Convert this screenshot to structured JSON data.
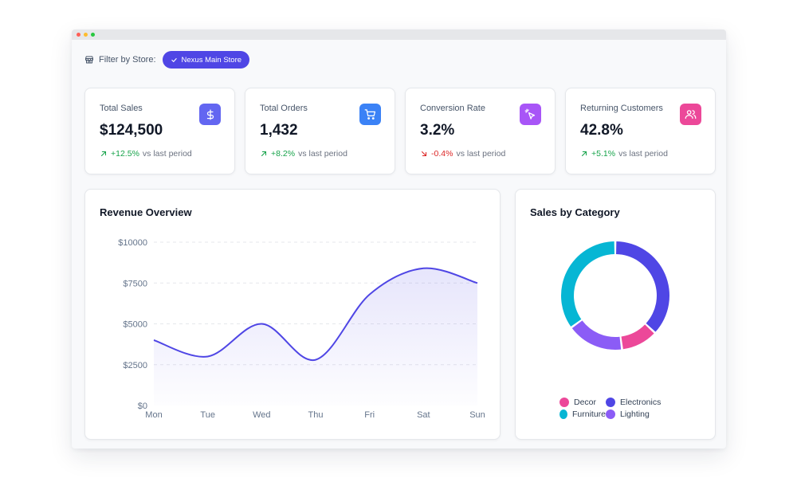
{
  "window": {
    "dots": [
      "#ff5f57",
      "#febc2e",
      "#28c840"
    ]
  },
  "filter": {
    "label": "Filter by Store:",
    "store": "Nexus Main Store"
  },
  "stats": [
    {
      "title": "Total Sales",
      "value": "$124,500",
      "trend": "+12.5%",
      "trend_sub": "vs last period",
      "direction": "up",
      "icon": "dollar-icon",
      "color": "#6366f1"
    },
    {
      "title": "Total Orders",
      "value": "1,432",
      "trend": "+8.2%",
      "trend_sub": "vs last period",
      "direction": "up",
      "icon": "shopping-cart-icon",
      "color": "#3b82f6"
    },
    {
      "title": "Conversion Rate",
      "value": "3.2%",
      "trend": "-0.4%",
      "trend_sub": "vs last period",
      "direction": "down",
      "icon": "pointer-click-icon",
      "color": "#a855f7"
    },
    {
      "title": "Returning Customers",
      "value": "42.8%",
      "trend": "+5.1%",
      "trend_sub": "vs last period",
      "direction": "up",
      "icon": "users-icon",
      "color": "#ec4899"
    }
  ],
  "colors": {
    "up": "#16a34a",
    "down": "#dc2626",
    "accent": "#4f46e5"
  },
  "revenue": {
    "title": "Revenue Overview"
  },
  "category": {
    "title": "Sales by Category"
  },
  "chart_data": [
    {
      "type": "area",
      "title": "Revenue Overview",
      "categories": [
        "Mon",
        "Tue",
        "Wed",
        "Thu",
        "Fri",
        "Sat",
        "Sun"
      ],
      "series": [
        {
          "name": "Revenue",
          "values": [
            4000,
            3000,
            5000,
            2800,
            6800,
            8400,
            7500
          ]
        }
      ],
      "ylim": [
        0,
        10000
      ],
      "yticks": [
        0,
        2500,
        5000,
        7500,
        10000
      ],
      "ytick_labels": [
        "$0",
        "$2500",
        "$5000",
        "$7500",
        "$10000"
      ],
      "color": "#4f46e5",
      "grid": true
    },
    {
      "type": "pie",
      "title": "Sales by Category",
      "donut": true,
      "categories": [
        "Electronics",
        "Decor",
        "Lighting",
        "Furniture"
      ],
      "values": [
        37,
        11,
        17,
        35
      ],
      "colors": [
        "#4f46e5",
        "#ec4899",
        "#8b5cf6",
        "#06b6d4"
      ],
      "legend_order": [
        "Decor",
        "Electronics",
        "Furniture",
        "Lighting"
      ]
    }
  ]
}
